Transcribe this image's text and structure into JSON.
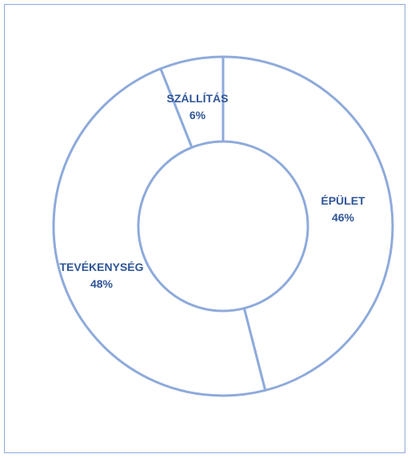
{
  "colors": {
    "frame_border": "#8eaadb",
    "ring_stroke": "#8eaadb",
    "slice_fill": "#ffffff",
    "label_text": "#2f5597"
  },
  "chart_data": {
    "type": "pie",
    "variant": "donut",
    "title": "",
    "categories": [
      "ÉPÜLET",
      "TEVÉKENYSÉG",
      "SZÁLLÍTÁS"
    ],
    "values": [
      46,
      48,
      6
    ],
    "value_labels": [
      "46%",
      "48%",
      "6%"
    ],
    "start_angle_deg": 0,
    "direction": "clockwise",
    "legend": "none",
    "grid": false
  }
}
